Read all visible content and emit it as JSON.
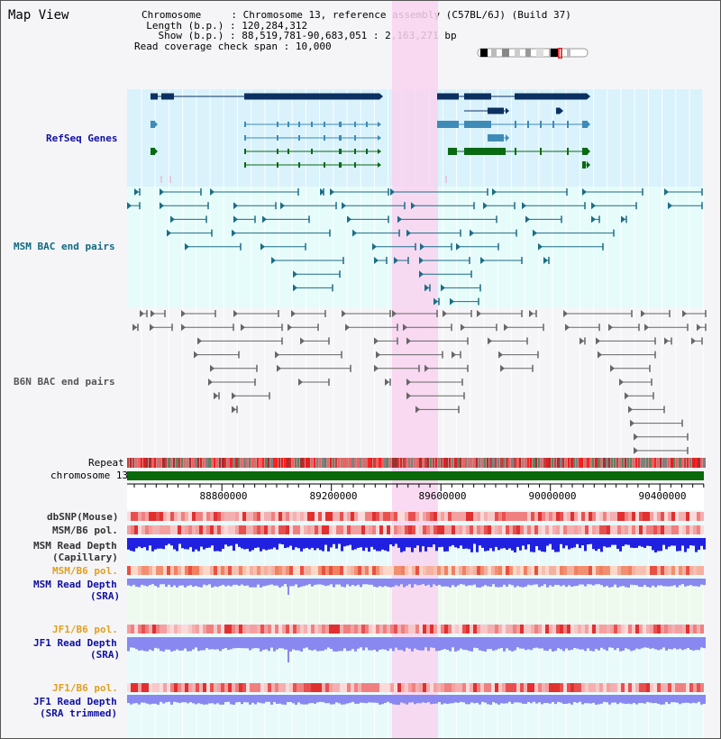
{
  "title": "Map View",
  "info": {
    "chromosome_label": "Chromosome",
    "chromosome_value": "Chromosome 13, reference assembly (C57BL/6J) (Build 37)",
    "length_label": "Length (b.p.)",
    "length_value": "120,284,312",
    "show_label": "Show (b.p.)",
    "show_value": "88,519,781-90,683,051 : 2,163,271 bp",
    "coverage_label": "Read coverage check span",
    "coverage_value": "10,000"
  },
  "tracks": {
    "refseq": "RefSeq Genes",
    "msm_bac": "MSM BAC end pairs",
    "b6n_bac": "B6N BAC end pairs",
    "repeat": "Repeat",
    "chromosome": "chromosome 13",
    "dbsnp": "dbSNP(Mouse)",
    "msm_b6_pol_1": "MSM/B6 pol.",
    "msm_read_depth_cap_1": "MSM Read Depth",
    "msm_read_depth_cap_2": "(Capillary)",
    "msm_b6_pol_2": "MSM/B6 pol.",
    "msm_read_depth_sra_1": "MSM Read Depth",
    "msm_read_depth_sra_2": "(SRA)",
    "jf1_b6_pol_1": "JF1/B6 pol.",
    "jf1_read_depth_sra_1": "JF1 Read Depth",
    "jf1_read_depth_sra_2": "(SRA)",
    "jf1_b6_pol_2": "JF1/B6 pol.",
    "jf1_read_depth_trim_1": "JF1 Read Depth",
    "jf1_read_depth_trim_2": "(SRA trimmed)"
  },
  "axis": {
    "ticks": [
      "88800000",
      "89200000",
      "89600000",
      "90000000",
      "90400000"
    ]
  },
  "colors": {
    "refseq_bg": "#d9f2fb",
    "bac_bg": "#e6fcfb",
    "highlight": "#f8d4f0",
    "refseq_dark": "#0c3060",
    "refseq_mid": "#3f8bb8",
    "refseq_green": "#0a6a12",
    "msm_pair": "#1c6d86",
    "b6n_pair": "#666666",
    "chrom_bar": "#0a6a0a",
    "depth_blue": "#2020e0",
    "depth_light": "#8888f0",
    "label_blue": "#1010a0",
    "label_teal": "#0f6a80",
    "label_orange": "#e0a020"
  }
}
